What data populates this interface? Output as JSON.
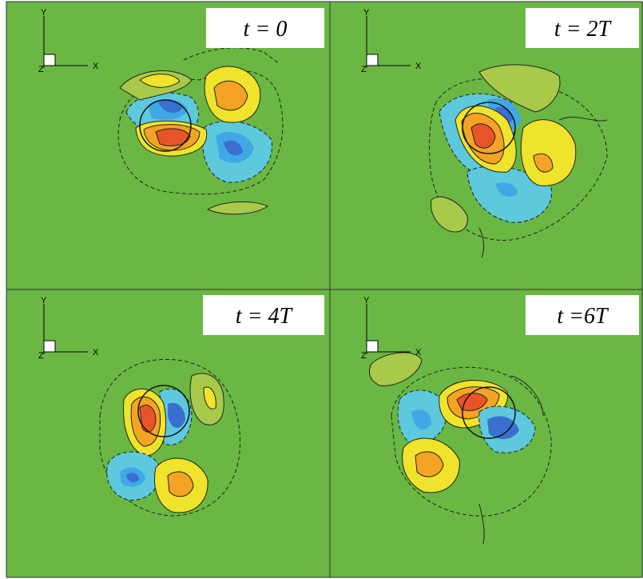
{
  "figure": {
    "background": "#6ab743",
    "panels": [
      {
        "id": "p1",
        "time_label": "t = 0",
        "axis": {
          "y": "Y",
          "x": "X",
          "z": "Z"
        }
      },
      {
        "id": "p2",
        "time_label": "t = 2T",
        "axis": {
          "y": "Y",
          "x": "X",
          "z": "Z"
        }
      },
      {
        "id": "p3",
        "time_label": "t = 4T",
        "axis": {
          "y": "Y",
          "x": "X",
          "z": "Z"
        }
      },
      {
        "id": "p4",
        "time_label": "t =6T",
        "axis": {
          "y": "Y",
          "x": "X",
          "z": "Z"
        }
      }
    ],
    "colors": {
      "green": "#6ab743",
      "light_green": "#a8c94a",
      "yellow": "#f0e32b",
      "orange": "#f4a324",
      "red": "#e8542a",
      "light_blue": "#5ec8dc",
      "sky_blue": "#40a8e6",
      "deep_blue": "#3a6fd0",
      "teal": "#6cc9a8"
    }
  }
}
